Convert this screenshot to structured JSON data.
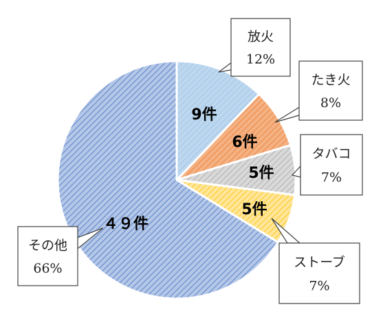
{
  "chart_data": {
    "type": "pie",
    "title": "",
    "start_angle_deg": 0,
    "direction": "clockwise",
    "slices": [
      {
        "name": "放火",
        "count": 9,
        "value_label": "9件",
        "percent": 12,
        "percent_label": "12%",
        "color": "#bdd7ee",
        "stripe": "#9dc3e6"
      },
      {
        "name": "たき火",
        "count": 6,
        "value_label": "6件",
        "percent": 8,
        "percent_label": "8%",
        "color": "#f4b183",
        "stripe": "#ed7d31"
      },
      {
        "name": "タバコ",
        "count": 5,
        "value_label": "5件",
        "percent": 7,
        "percent_label": "7%",
        "color": "#d9d9d9",
        "stripe": "#a5a5a5"
      },
      {
        "name": "ストーブ",
        "count": 5,
        "value_label": "5件",
        "percent": 7,
        "percent_label": "7%",
        "color": "#ffe699",
        "stripe": "#ffc000"
      },
      {
        "name": "その他",
        "count": 49,
        "value_label": "４９件",
        "percent": 66,
        "percent_label": "66%",
        "color": "#b4c7e7",
        "stripe": "#4472c4"
      }
    ]
  }
}
